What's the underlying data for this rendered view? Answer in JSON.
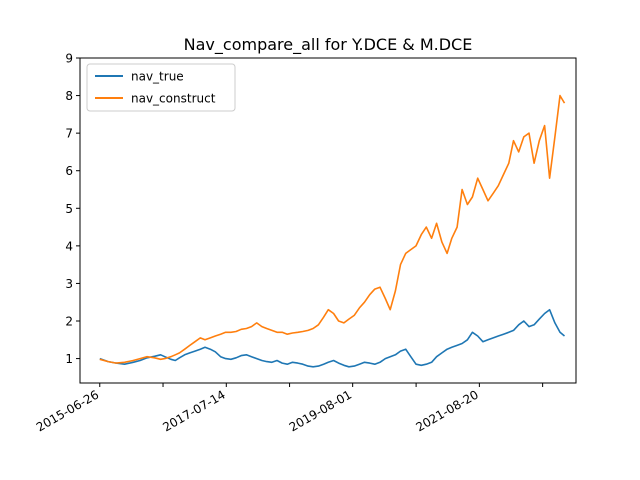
{
  "chart_data": {
    "type": "line",
    "title": "Nav_compare_all for Y.DCE & M.DCE",
    "xlabel": "",
    "ylabel": "",
    "x_tick_labels": [
      "2015-06-26",
      "2017-07-14",
      "2019-08-01",
      "2021-08-20"
    ],
    "x_tick_dates": [
      "2015-06-26",
      "2017-07-14",
      "2019-08-01",
      "2021-08-20"
    ],
    "y_ticks": [
      1,
      2,
      3,
      4,
      5,
      6,
      7,
      8,
      9
    ],
    "ylim": [
      0.35,
      9.0
    ],
    "xlim": [
      "2015-03-01",
      "2023-03-15"
    ],
    "legend_position": "top-left",
    "grid": false,
    "series": [
      {
        "name": "nav_true",
        "color": "#1f77b4",
        "x": [
          "2015-06-26",
          "2015-08-15",
          "2015-10-01",
          "2015-11-20",
          "2016-01-10",
          "2016-02-20",
          "2016-04-01",
          "2016-05-15",
          "2016-06-20",
          "2016-07-15",
          "2016-08-20",
          "2016-09-15",
          "2016-10-10",
          "2016-11-10",
          "2016-12-10",
          "2017-01-10",
          "2017-02-10",
          "2017-03-10",
          "2017-04-10",
          "2017-05-10",
          "2017-06-10",
          "2017-07-10",
          "2017-08-10",
          "2017-09-10",
          "2017-10-10",
          "2017-11-10",
          "2017-12-10",
          "2018-01-10",
          "2018-02-10",
          "2018-03-10",
          "2018-04-10",
          "2018-05-10",
          "2018-06-10",
          "2018-07-10",
          "2018-08-10",
          "2018-09-10",
          "2018-10-10",
          "2018-11-10",
          "2018-12-10",
          "2019-01-10",
          "2019-02-10",
          "2019-03-10",
          "2019-04-10",
          "2019-05-10",
          "2019-06-10",
          "2019-07-10",
          "2019-08-10",
          "2019-09-10",
          "2019-10-10",
          "2019-11-10",
          "2019-12-10",
          "2020-01-10",
          "2020-02-10",
          "2020-03-10",
          "2020-04-10",
          "2020-05-10",
          "2020-06-10",
          "2020-07-10",
          "2020-08-10",
          "2020-09-10",
          "2020-10-10",
          "2020-11-10",
          "2020-12-10",
          "2021-01-10",
          "2021-02-10",
          "2021-03-10",
          "2021-04-10",
          "2021-05-10",
          "2021-06-10",
          "2021-07-10",
          "2021-08-10",
          "2021-09-10",
          "2021-10-10",
          "2021-11-10",
          "2021-12-10",
          "2022-01-10",
          "2022-02-10",
          "2022-03-10",
          "2022-04-10",
          "2022-05-10",
          "2022-06-10",
          "2022-07-10",
          "2022-08-10",
          "2022-09-10",
          "2022-10-10",
          "2022-11-10",
          "2022-12-10",
          "2023-01-06"
        ],
        "values": [
          1.0,
          0.92,
          0.88,
          0.85,
          0.9,
          0.95,
          1.02,
          1.06,
          1.1,
          1.05,
          0.98,
          0.95,
          1.02,
          1.1,
          1.15,
          1.2,
          1.25,
          1.3,
          1.25,
          1.18,
          1.05,
          1.0,
          0.98,
          1.02,
          1.08,
          1.1,
          1.05,
          1.0,
          0.95,
          0.92,
          0.9,
          0.95,
          0.88,
          0.85,
          0.9,
          0.88,
          0.85,
          0.8,
          0.78,
          0.8,
          0.85,
          0.9,
          0.95,
          0.88,
          0.82,
          0.78,
          0.8,
          0.85,
          0.9,
          0.88,
          0.85,
          0.9,
          1.0,
          1.05,
          1.1,
          1.2,
          1.25,
          1.05,
          0.85,
          0.82,
          0.85,
          0.9,
          1.05,
          1.15,
          1.25,
          1.3,
          1.35,
          1.4,
          1.5,
          1.7,
          1.6,
          1.45,
          1.5,
          1.55,
          1.6,
          1.65,
          1.7,
          1.75,
          1.9,
          2.0,
          1.85,
          1.9,
          2.05,
          2.2,
          2.3,
          1.95,
          1.7,
          1.6
        ]
      },
      {
        "name": "nav_construct",
        "color": "#ff7f0e",
        "x": [
          "2015-06-26",
          "2015-08-15",
          "2015-10-01",
          "2015-11-20",
          "2016-01-10",
          "2016-02-20",
          "2016-04-01",
          "2016-05-15",
          "2016-06-20",
          "2016-07-15",
          "2016-08-20",
          "2016-09-15",
          "2016-10-10",
          "2016-11-10",
          "2016-12-10",
          "2017-01-10",
          "2017-02-10",
          "2017-03-10",
          "2017-04-10",
          "2017-05-10",
          "2017-06-10",
          "2017-07-10",
          "2017-08-10",
          "2017-09-10",
          "2017-10-10",
          "2017-11-10",
          "2017-12-10",
          "2018-01-10",
          "2018-02-10",
          "2018-03-10",
          "2018-04-10",
          "2018-05-10",
          "2018-06-10",
          "2018-07-10",
          "2018-08-10",
          "2018-09-10",
          "2018-10-10",
          "2018-11-10",
          "2018-12-10",
          "2019-01-10",
          "2019-02-10",
          "2019-03-10",
          "2019-04-10",
          "2019-05-10",
          "2019-06-10",
          "2019-07-10",
          "2019-08-10",
          "2019-09-10",
          "2019-10-10",
          "2019-11-10",
          "2019-12-10",
          "2020-01-10",
          "2020-02-10",
          "2020-03-10",
          "2020-04-10",
          "2020-05-10",
          "2020-06-10",
          "2020-07-10",
          "2020-08-10",
          "2020-09-10",
          "2020-10-10",
          "2020-11-10",
          "2020-12-10",
          "2021-01-10",
          "2021-02-10",
          "2021-03-10",
          "2021-04-10",
          "2021-05-10",
          "2021-06-10",
          "2021-07-10",
          "2021-08-10",
          "2021-09-10",
          "2021-10-10",
          "2021-11-10",
          "2021-12-10",
          "2022-01-10",
          "2022-02-10",
          "2022-03-10",
          "2022-04-10",
          "2022-05-10",
          "2022-06-10",
          "2022-07-10",
          "2022-08-10",
          "2022-09-10",
          "2022-10-10",
          "2022-11-10",
          "2022-12-10",
          "2023-01-06"
        ],
        "values": [
          0.98,
          0.92,
          0.88,
          0.9,
          0.95,
          1.0,
          1.05,
          1.02,
          0.98,
          1.0,
          1.05,
          1.1,
          1.15,
          1.25,
          1.35,
          1.45,
          1.55,
          1.5,
          1.55,
          1.6,
          1.65,
          1.7,
          1.7,
          1.72,
          1.78,
          1.8,
          1.85,
          1.95,
          1.85,
          1.8,
          1.75,
          1.7,
          1.7,
          1.65,
          1.68,
          1.7,
          1.72,
          1.75,
          1.8,
          1.9,
          2.1,
          2.3,
          2.2,
          2.0,
          1.95,
          2.05,
          2.15,
          2.35,
          2.5,
          2.7,
          2.85,
          2.9,
          2.6,
          2.3,
          2.8,
          3.5,
          3.8,
          3.9,
          4.0,
          4.3,
          4.5,
          4.2,
          4.6,
          4.1,
          3.8,
          4.2,
          4.5,
          5.5,
          5.1,
          5.3,
          5.8,
          5.5,
          5.2,
          5.4,
          5.6,
          5.9,
          6.2,
          6.8,
          6.5,
          6.9,
          7.0,
          6.2,
          6.8,
          7.2,
          5.8,
          6.9,
          8.0,
          7.8
        ]
      }
    ]
  }
}
